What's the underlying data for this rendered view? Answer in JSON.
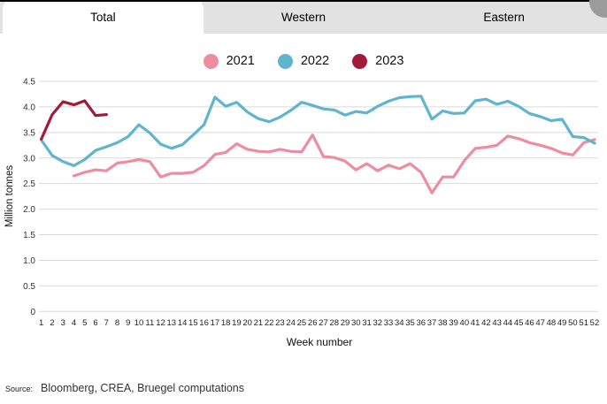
{
  "tabs": [
    {
      "label": "Total",
      "active": true
    },
    {
      "label": "Western",
      "active": false
    },
    {
      "label": "Eastern",
      "active": false
    }
  ],
  "legend": [
    {
      "label": "2021",
      "color": "#ee8ca1"
    },
    {
      "label": "2022",
      "color": "#60b5cd"
    },
    {
      "label": "2023",
      "color": "#a11a3b"
    }
  ],
  "source": {
    "label": "Source:",
    "text": "Bloomberg, CREA, Bruegel computations"
  },
  "chart_data": {
    "type": "line",
    "title": "",
    "xlabel": "Week number",
    "ylabel": "Million tonnes",
    "ylim": [
      0,
      4.5
    ],
    "grid": "horizontal",
    "legend_position": "top-center",
    "y_tick_labels": [
      "4.5",
      "4.0",
      "3.5",
      "3.0",
      "2.5",
      "2.0",
      "1.5",
      "1.0",
      "0.5",
      "0"
    ],
    "x": [
      1,
      2,
      3,
      4,
      5,
      6,
      7,
      8,
      9,
      10,
      11,
      12,
      13,
      14,
      15,
      16,
      17,
      18,
      19,
      20,
      21,
      22,
      23,
      24,
      25,
      26,
      27,
      28,
      29,
      30,
      31,
      32,
      33,
      34,
      35,
      36,
      37,
      38,
      39,
      40,
      41,
      42,
      43,
      44,
      45,
      46,
      47,
      48,
      49,
      50,
      51,
      52
    ],
    "series": [
      {
        "name": "2021",
        "color": "#ee8ca1",
        "values": [
          null,
          null,
          null,
          2.65,
          2.72,
          2.77,
          2.75,
          2.9,
          2.93,
          2.97,
          2.93,
          2.63,
          2.7,
          2.7,
          2.72,
          2.85,
          3.07,
          3.11,
          3.28,
          3.17,
          3.13,
          3.12,
          3.17,
          3.13,
          3.12,
          3.45,
          3.03,
          3.01,
          2.94,
          2.77,
          2.89,
          2.75,
          2.86,
          2.79,
          2.89,
          2.72,
          2.32,
          2.63,
          2.63,
          2.95,
          3.19,
          3.21,
          3.25,
          3.43,
          3.38,
          3.3,
          3.25,
          3.19,
          3.1,
          3.06,
          3.3,
          3.36
        ]
      },
      {
        "name": "2022",
        "color": "#60b5cd",
        "values": [
          3.35,
          3.05,
          2.93,
          2.85,
          2.97,
          3.15,
          3.22,
          3.3,
          3.42,
          3.65,
          3.49,
          3.27,
          3.19,
          3.26,
          3.45,
          3.65,
          4.19,
          4.01,
          4.09,
          3.9,
          3.77,
          3.71,
          3.8,
          3.93,
          4.09,
          4.03,
          3.96,
          3.94,
          3.84,
          3.91,
          3.88,
          4.01,
          4.11,
          4.18,
          4.2,
          4.21,
          3.76,
          3.92,
          3.87,
          3.88,
          4.12,
          4.15,
          4.05,
          4.11,
          4.01,
          3.87,
          3.81,
          3.73,
          3.76,
          3.42,
          3.4,
          3.29
        ]
      },
      {
        "name": "2023",
        "color": "#a11a3b",
        "values": [
          3.37,
          3.85,
          4.1,
          4.04,
          4.12,
          3.83,
          3.85,
          null,
          null,
          null,
          null,
          null,
          null,
          null,
          null,
          null,
          null,
          null,
          null,
          null,
          null,
          null,
          null,
          null,
          null,
          null,
          null,
          null,
          null,
          null,
          null,
          null,
          null,
          null,
          null,
          null,
          null,
          null,
          null,
          null,
          null,
          null,
          null,
          null,
          null,
          null,
          null,
          null,
          null,
          null,
          null,
          null
        ]
      }
    ]
  }
}
